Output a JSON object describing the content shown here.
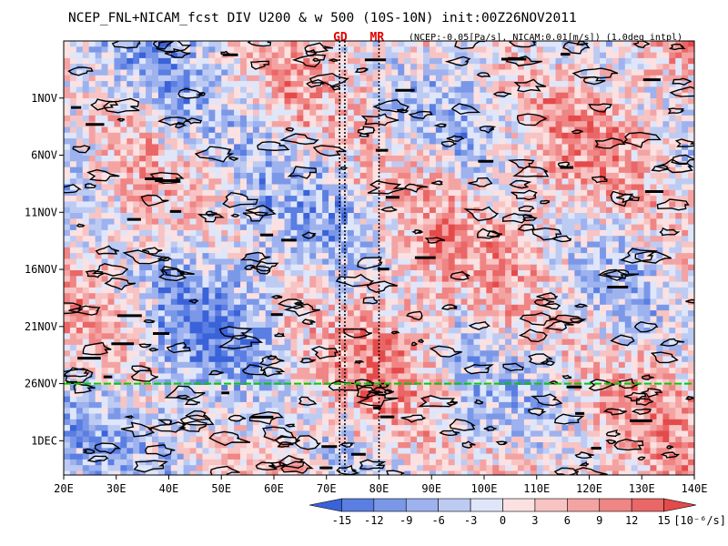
{
  "title": "NCEP_FNL+NICAM_fcst DIV U200 & w 500 (10S-10N) init:00Z26NOV2011",
  "subtitle": "(NCEP:-0.05[Pa/s], NICAM:0.01[m/s]) (1.0deg intpl)",
  "markers": [
    {
      "label": "GD",
      "lon": 73
    },
    {
      "label": "MR",
      "lon": 80
    }
  ],
  "chart_data": {
    "type": "heatmap",
    "title": "NCEP_FNL+NICAM_fcst DIV U200 & w 500 (10S-10N) init:00Z26NOV2011",
    "subtitle": "(NCEP:-0.05[Pa/s], NICAM:0.01[m/s]) (1.0deg intpl)",
    "x_axis": {
      "range": [
        20,
        140
      ],
      "ticks": [
        20,
        30,
        40,
        50,
        60,
        70,
        80,
        90,
        100,
        110,
        120,
        130,
        140
      ],
      "tick_labels": [
        "20E",
        "30E",
        "40E",
        "50E",
        "60E",
        "70E",
        "80E",
        "90E",
        "100E",
        "110E",
        "120E",
        "130E",
        "140E"
      ]
    },
    "y_axis": {
      "range_days": [
        "2011-10-27",
        "2011-12-04"
      ],
      "ticks": [
        "2011-11-01",
        "2011-11-06",
        "2011-11-11",
        "2011-11-16",
        "2011-11-21",
        "2011-11-26",
        "2011-12-01"
      ],
      "tick_labels": [
        "1NOV",
        "6NOV",
        "11NOV",
        "16NOV",
        "21NOV",
        "26NOV",
        "1DEC"
      ],
      "direction": "downward"
    },
    "colorbar": {
      "levels": [
        -15,
        -12,
        -9,
        -6,
        -3,
        0,
        3,
        6,
        9,
        12,
        15
      ],
      "labels": [
        "-15",
        "-12",
        "-9",
        "-6",
        "-3",
        "0",
        "3",
        "6",
        "9",
        "12",
        "15"
      ],
      "unit": "[10⁻⁶/s]",
      "colors": [
        "#3a62d9",
        "#5a7ee2",
        "#7b98e8",
        "#9db2ee",
        "#bdcbf3",
        "#dfe6fa",
        "#fbe1e1",
        "#f8c3c3",
        "#f4a3a3",
        "#ef8585",
        "#ea6767",
        "#e54a4a"
      ]
    },
    "initialization_line": {
      "date": "2011-11-26",
      "color": "#00cc00"
    },
    "vertical_lines": [
      {
        "label": "GD",
        "lon": 72.5,
        "style": "dotted"
      },
      {
        "label": "GD",
        "lon": 73.5,
        "style": "dotted"
      },
      {
        "label": "MR",
        "lon": 80,
        "style": "dotted"
      }
    ],
    "contour": {
      "variable": "w 500",
      "NCEP_threshold": "-0.05[Pa/s]",
      "NICAM_threshold": "0.01[m/s]"
    }
  }
}
